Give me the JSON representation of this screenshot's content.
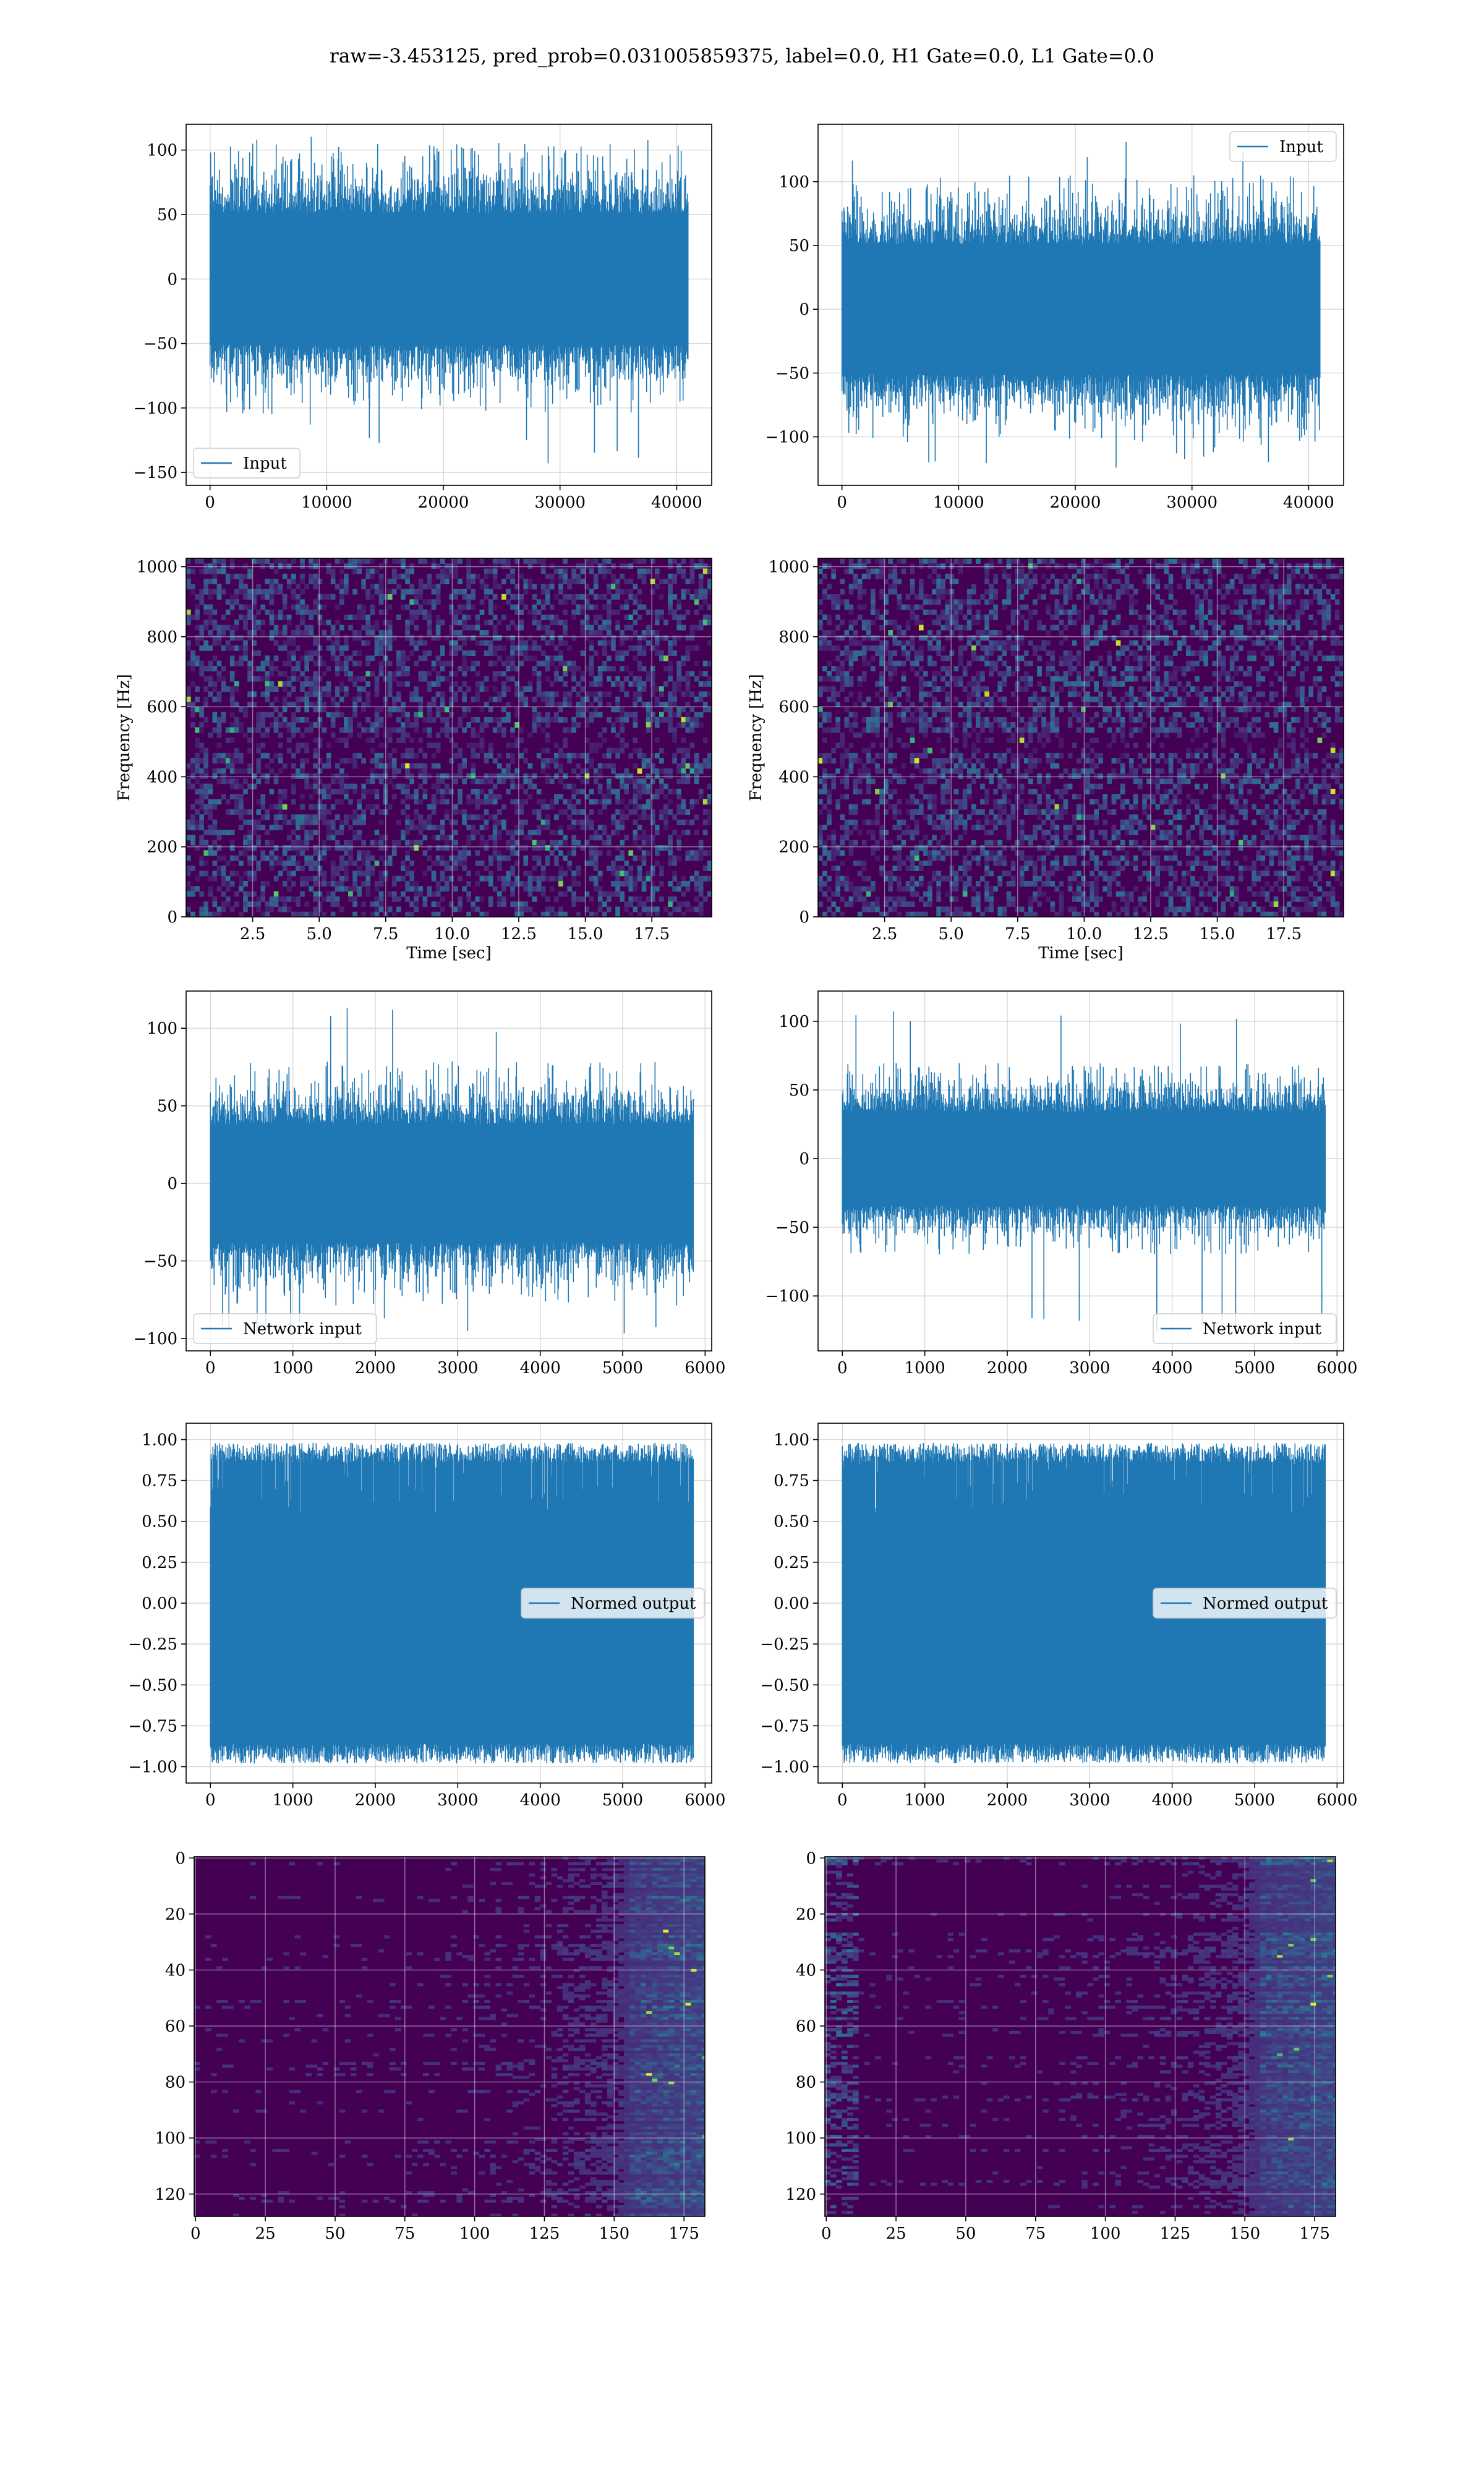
{
  "figure": {
    "title": "raw=-3.453125, pred_prob=0.031005859375, label=0.0, H1 Gate=0.0, L1 Gate=0.0",
    "colors": {
      "line": "#1f77b4",
      "grid": "#d3d3d3",
      "spine": "#000000",
      "viridis_dark": "#440154"
    }
  },
  "chart_data": [
    {
      "id": "r1c1",
      "type": "line",
      "grid": true,
      "xlim": [
        -2050,
        43000
      ],
      "ylim": [
        -160,
        120
      ],
      "xticks": [
        0,
        10000,
        20000,
        30000,
        40000
      ],
      "xticklabels": [
        "0",
        "10000",
        "20000",
        "30000",
        "40000"
      ],
      "yticks": [
        -150,
        -100,
        -50,
        0,
        50,
        100
      ],
      "yticklabels": [
        "−150",
        "−100",
        "−50",
        "0",
        "50",
        "100"
      ],
      "series": [
        {
          "name": "Input",
          "x_range": [
            0,
            40960
          ],
          "n_samples": 40960,
          "typical_amplitude": 60,
          "min": -143,
          "max": 114
        }
      ],
      "legend": {
        "loc": "lower left",
        "entries": [
          "Input"
        ]
      }
    },
    {
      "id": "r1c2",
      "type": "line",
      "grid": true,
      "xlim": [
        -2050,
        43000
      ],
      "ylim": [
        -138,
        145
      ],
      "xticks": [
        0,
        10000,
        20000,
        30000,
        40000
      ],
      "xticklabels": [
        "0",
        "10000",
        "20000",
        "30000",
        "40000"
      ],
      "yticks": [
        -100,
        -50,
        0,
        50,
        100
      ],
      "yticklabels": [
        "−100",
        "−50",
        "0",
        "50",
        "100"
      ],
      "series": [
        {
          "name": "Input",
          "x_range": [
            0,
            40960
          ],
          "n_samples": 40960,
          "typical_amplitude": 60,
          "min": -125,
          "max": 134
        }
      ],
      "legend": {
        "loc": "upper right",
        "entries": [
          "Input"
        ]
      }
    },
    {
      "id": "r2c1",
      "type": "heatmap",
      "colormap": "viridis",
      "grid": true,
      "xlim": [
        0,
        19.75
      ],
      "ylim": [
        0,
        1024
      ],
      "xticks": [
        2.5,
        5.0,
        7.5,
        10.0,
        12.5,
        15.0,
        17.5
      ],
      "xticklabels": [
        "2.5",
        "5.0",
        "7.5",
        "10.0",
        "12.5",
        "15.0",
        "17.5"
      ],
      "yticks": [
        0,
        200,
        400,
        600,
        800,
        1000
      ],
      "yticklabels": [
        "0",
        "200",
        "400",
        "600",
        "800",
        "1000"
      ],
      "xlabel": "Time [sec]",
      "ylabel": "Frequency [Hz]",
      "description": "spectrogram of whitened noise, mostly dark purple with scattered faint cells; dark horizontal band near 500 Hz"
    },
    {
      "id": "r2c2",
      "type": "heatmap",
      "colormap": "viridis",
      "grid": true,
      "xlim": [
        0,
        19.75
      ],
      "ylim": [
        0,
        1024
      ],
      "xticks": [
        2.5,
        5.0,
        7.5,
        10.0,
        12.5,
        15.0,
        17.5
      ],
      "xticklabels": [
        "2.5",
        "5.0",
        "7.5",
        "10.0",
        "12.5",
        "15.0",
        "17.5"
      ],
      "yticks": [
        0,
        200,
        400,
        600,
        800,
        1000
      ],
      "yticklabels": [
        "0",
        "200",
        "400",
        "600",
        "800",
        "1000"
      ],
      "xlabel": "Time [sec]",
      "ylabel": "Frequency [Hz]",
      "description": "spectrogram of whitened noise, mostly dark purple with scattered faint cells; dark horizontal band near 500 Hz"
    },
    {
      "id": "r3c1",
      "type": "line",
      "grid": true,
      "xlim": [
        -295,
        6080
      ],
      "ylim": [
        -108,
        124
      ],
      "xticks": [
        0,
        1000,
        2000,
        3000,
        4000,
        5000,
        6000
      ],
      "xticklabels": [
        "0",
        "1000",
        "2000",
        "3000",
        "4000",
        "5000",
        "6000"
      ],
      "yticks": [
        -100,
        -50,
        0,
        50,
        100
      ],
      "yticklabels": [
        "−100",
        "−50",
        "0",
        "50",
        "100"
      ],
      "series": [
        {
          "name": "Network input",
          "x_range": [
            0,
            5856
          ],
          "n_samples": 5856,
          "typical_amplitude": 45,
          "min": -101,
          "max": 114
        }
      ],
      "legend": {
        "loc": "lower left",
        "entries": [
          "Network input"
        ]
      }
    },
    {
      "id": "r3c2",
      "type": "line",
      "grid": true,
      "xlim": [
        -295,
        6080
      ],
      "ylim": [
        -140,
        122
      ],
      "xticks": [
        0,
        1000,
        2000,
        3000,
        4000,
        5000,
        6000
      ],
      "xticklabels": [
        "0",
        "1000",
        "2000",
        "3000",
        "4000",
        "5000",
        "6000"
      ],
      "yticks": [
        -100,
        -50,
        0,
        50,
        100
      ],
      "yticklabels": [
        "−100",
        "−50",
        "0",
        "50",
        "100"
      ],
      "series": [
        {
          "name": "Network input",
          "x_range": [
            0,
            5856
          ],
          "n_samples": 5856,
          "typical_amplitude": 40,
          "min": -133,
          "max": 110
        }
      ],
      "legend": {
        "loc": "lower right",
        "entries": [
          "Network input"
        ]
      }
    },
    {
      "id": "r4c1",
      "type": "line",
      "grid": true,
      "xlim": [
        -295,
        6080
      ],
      "ylim": [
        -1.1,
        1.1
      ],
      "xticks": [
        0,
        1000,
        2000,
        3000,
        4000,
        5000,
        6000
      ],
      "xticklabels": [
        "0",
        "1000",
        "2000",
        "3000",
        "4000",
        "5000",
        "6000"
      ],
      "yticks": [
        -1.0,
        -0.75,
        -0.5,
        -0.25,
        0.0,
        0.25,
        0.5,
        0.75,
        1.0
      ],
      "yticklabels": [
        "−1.00",
        "−0.75",
        "−0.50",
        "−0.25",
        "0.00",
        "0.25",
        "0.50",
        "0.75",
        "1.00"
      ],
      "series": [
        {
          "name": "Normed output",
          "x_range": [
            0,
            5856
          ],
          "n_samples": 5856,
          "min": -1.0,
          "max": 1.0
        }
      ],
      "legend": {
        "loc": "center right",
        "entries": [
          "Normed output"
        ]
      }
    },
    {
      "id": "r4c2",
      "type": "line",
      "grid": true,
      "xlim": [
        -295,
        6080
      ],
      "ylim": [
        -1.1,
        1.1
      ],
      "xticks": [
        0,
        1000,
        2000,
        3000,
        4000,
        5000,
        6000
      ],
      "xticklabels": [
        "0",
        "1000",
        "2000",
        "3000",
        "4000",
        "5000",
        "6000"
      ],
      "yticks": [
        -1.0,
        -0.75,
        -0.5,
        -0.25,
        0.0,
        0.25,
        0.5,
        0.75,
        1.0
      ],
      "yticklabels": [
        "−1.00",
        "−0.75",
        "−0.50",
        "−0.25",
        "0.00",
        "0.25",
        "0.50",
        "0.75",
        "1.00"
      ],
      "series": [
        {
          "name": "Normed output",
          "x_range": [
            0,
            5856
          ],
          "n_samples": 5856,
          "min": -1.0,
          "max": 1.0
        }
      ],
      "legend": {
        "loc": "center right",
        "entries": [
          "Normed output"
        ]
      }
    },
    {
      "id": "r5c1",
      "type": "heatmap",
      "colormap": "viridis",
      "grid": true,
      "xlim": [
        -0.5,
        182.5
      ],
      "ylim": [
        128,
        -0.5
      ],
      "xticks": [
        0,
        25,
        50,
        75,
        100,
        125,
        150,
        175
      ],
      "xticklabels": [
        "0",
        "25",
        "50",
        "75",
        "100",
        "125",
        "150",
        "175"
      ],
      "yticks": [
        0,
        20,
        40,
        60,
        80,
        100,
        120
      ],
      "yticklabels": [
        "0",
        "20",
        "40",
        "60",
        "80",
        "100",
        "120"
      ],
      "description": "128 x 183 feature map; dark purple with horizontal streaks, brighter teal/yellow near right edge"
    },
    {
      "id": "r5c2",
      "type": "heatmap",
      "colormap": "viridis",
      "grid": true,
      "xlim": [
        -0.5,
        182.5
      ],
      "ylim": [
        128,
        -0.5
      ],
      "xticks": [
        0,
        25,
        50,
        75,
        100,
        125,
        150,
        175
      ],
      "xticklabels": [
        "0",
        "25",
        "50",
        "75",
        "100",
        "125",
        "150",
        "175"
      ],
      "yticks": [
        0,
        20,
        40,
        60,
        80,
        100,
        120
      ],
      "yticklabels": [
        "0",
        "20",
        "40",
        "60",
        "80",
        "100",
        "120"
      ],
      "description": "128 x 183 feature map; dark purple with horizontal streaks, bright teal/yellow at left and right edges"
    }
  ]
}
